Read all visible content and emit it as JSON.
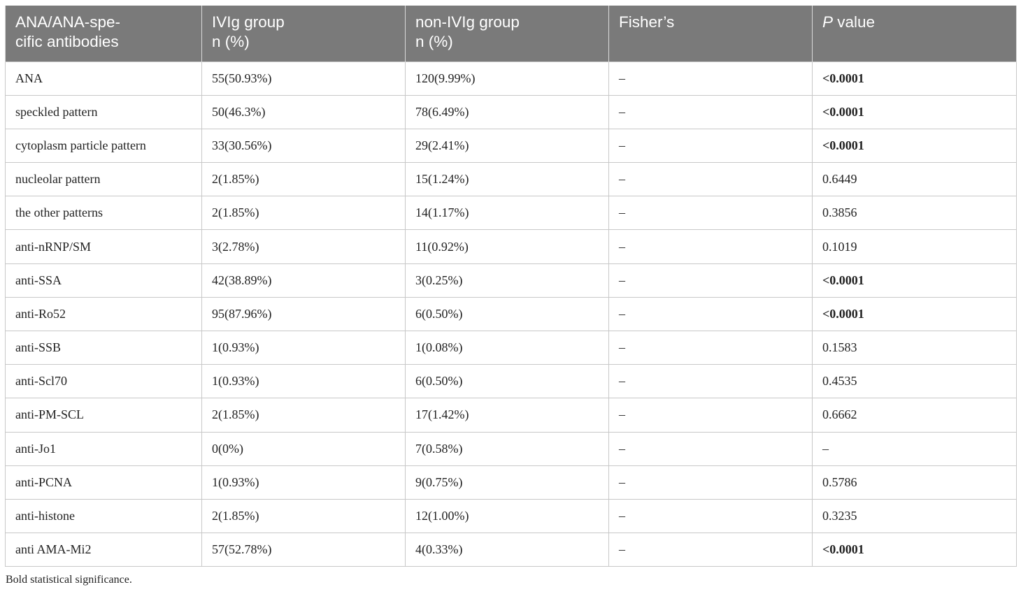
{
  "table": {
    "headers": [
      {
        "text": "ANA/ANA-spe-\ncific antibodies",
        "italic": false
      },
      {
        "text": "IVIg group\nn (%)",
        "italic": false
      },
      {
        "text": "non-IVIg group\nn (%)",
        "italic": false
      },
      {
        "text": "Fisher’s",
        "italic": false
      },
      {
        "text": "P",
        "italic": true,
        "suffix": " value"
      }
    ],
    "rows": [
      {
        "antibody": "ANA",
        "ivig": "55(50.93%)",
        "non_ivig": "120(9.99%)",
        "fisher": "–",
        "p": "<0.0001",
        "significant": true
      },
      {
        "antibody": "speckled pattern",
        "ivig": "50(46.3%)",
        "non_ivig": "78(6.49%)",
        "fisher": "–",
        "p": "<0.0001",
        "significant": true
      },
      {
        "antibody": "cytoplasm particle pattern",
        "ivig": "33(30.56%)",
        "non_ivig": "29(2.41%)",
        "fisher": "–",
        "p": "<0.0001",
        "significant": true
      },
      {
        "antibody": "nucleolar pattern",
        "ivig": "2(1.85%)",
        "non_ivig": "15(1.24%)",
        "fisher": "–",
        "p": "0.6449",
        "significant": false
      },
      {
        "antibody": "the other patterns",
        "ivig": "2(1.85%)",
        "non_ivig": "14(1.17%)",
        "fisher": "–",
        "p": "0.3856",
        "significant": false
      },
      {
        "antibody": "anti-nRNP/SM",
        "ivig": "3(2.78%)",
        "non_ivig": "11(0.92%)",
        "fisher": "–",
        "p": "0.1019",
        "significant": false
      },
      {
        "antibody": "anti-SSA",
        "ivig": "42(38.89%)",
        "non_ivig": "3(0.25%)",
        "fisher": "–",
        "p": "<0.0001",
        "significant": true
      },
      {
        "antibody": "anti-Ro52",
        "ivig": "95(87.96%)",
        "non_ivig": "6(0.50%)",
        "fisher": "–",
        "p": "<0.0001",
        "significant": true
      },
      {
        "antibody": "anti-SSB",
        "ivig": "1(0.93%)",
        "non_ivig": "1(0.08%)",
        "fisher": "–",
        "p": "0.1583",
        "significant": false
      },
      {
        "antibody": "anti-Scl70",
        "ivig": "1(0.93%)",
        "non_ivig": "6(0.50%)",
        "fisher": "–",
        "p": "0.4535",
        "significant": false
      },
      {
        "antibody": "anti-PM-SCL",
        "ivig": "2(1.85%)",
        "non_ivig": "17(1.42%)",
        "fisher": "–",
        "p": "0.6662",
        "significant": false
      },
      {
        "antibody": "anti-Jo1",
        "ivig": "0(0%)",
        "non_ivig": "7(0.58%)",
        "fisher": "–",
        "p": "–",
        "significant": false
      },
      {
        "antibody": "anti-PCNA",
        "ivig": "1(0.93%)",
        "non_ivig": "9(0.75%)",
        "fisher": "–",
        "p": "0.5786",
        "significant": false
      },
      {
        "antibody": "anti-histone",
        "ivig": "2(1.85%)",
        "non_ivig": "12(1.00%)",
        "fisher": "–",
        "p": "0.3235",
        "significant": false
      },
      {
        "antibody": "anti AMA-Mi2",
        "ivig": "57(52.78%)",
        "non_ivig": "4(0.33%)",
        "fisher": "–",
        "p": "<0.0001",
        "significant": true
      }
    ]
  },
  "footnote": "Bold statistical significance.",
  "colors": {
    "header_bg": "#7a7a7a",
    "header_text": "#ffffff",
    "border": "#c8c8c8"
  }
}
